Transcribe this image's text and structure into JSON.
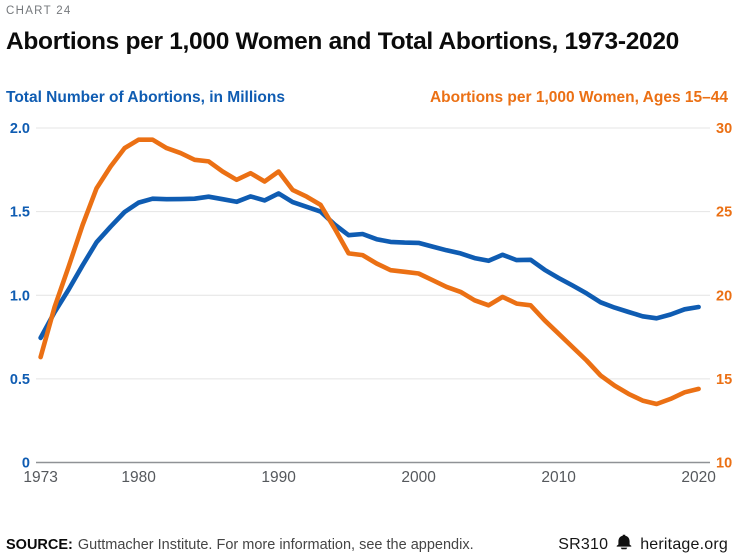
{
  "header": {
    "kicker": "CHART 24",
    "title": "Abortions per 1,000 Women and Total Abortions, 1973-2020"
  },
  "legend": {
    "left_label": "Total Number of Abortions, in Millions",
    "right_label": "Abortions per 1,000 Women, Ages 15–44"
  },
  "colors": {
    "blue": "#0F5CB2",
    "orange": "#EB7014",
    "grid": "#E4E4E4",
    "axis_line": "#8F9296",
    "year_tick": "#55585C",
    "kicker": "#76797D",
    "title": "#0B0B0B",
    "footer_text": "#454545"
  },
  "chart_data": {
    "type": "line",
    "title": "Abortions per 1,000 Women and Total Abortions, 1973-2020",
    "grid": true,
    "legend_position": "top",
    "x": [
      1973,
      1974,
      1975,
      1976,
      1977,
      1978,
      1979,
      1980,
      1981,
      1982,
      1983,
      1984,
      1985,
      1986,
      1987,
      1988,
      1989,
      1990,
      1991,
      1992,
      1993,
      1994,
      1995,
      1996,
      1997,
      1998,
      1999,
      2000,
      2001,
      2002,
      2003,
      2004,
      2005,
      2006,
      2007,
      2008,
      2009,
      2010,
      2011,
      2012,
      2013,
      2014,
      2015,
      2016,
      2017,
      2018,
      2019,
      2020
    ],
    "series": [
      {
        "id": "total-abortions",
        "name": "Total Number of Abortions, in Millions",
        "axis": "left",
        "color_key": "blue",
        "values": [
          0.745,
          0.899,
          1.034,
          1.179,
          1.317,
          1.41,
          1.498,
          1.554,
          1.577,
          1.574,
          1.575,
          1.577,
          1.589,
          1.574,
          1.559,
          1.591,
          1.567,
          1.609,
          1.557,
          1.529,
          1.5,
          1.423,
          1.359,
          1.366,
          1.335,
          1.319,
          1.315,
          1.313,
          1.291,
          1.269,
          1.25,
          1.222,
          1.206,
          1.242,
          1.21,
          1.212,
          1.152,
          1.103,
          1.058,
          1.011,
          0.958,
          0.926,
          0.9,
          0.874,
          0.862,
          0.885,
          0.916,
          0.93
        ]
      },
      {
        "id": "abortion-rate",
        "name": "Abortions per 1,000 Women, Ages 15–44",
        "axis": "right",
        "color_key": "orange",
        "values": [
          16.3,
          19.3,
          21.7,
          24.2,
          26.4,
          27.7,
          28.8,
          29.3,
          29.3,
          28.8,
          28.5,
          28.1,
          28.0,
          27.4,
          26.9,
          27.3,
          26.8,
          27.4,
          26.3,
          25.9,
          25.4,
          24.0,
          22.5,
          22.4,
          21.9,
          21.5,
          21.4,
          21.3,
          20.9,
          20.5,
          20.2,
          19.7,
          19.4,
          19.9,
          19.5,
          19.4,
          18.5,
          17.7,
          16.9,
          16.1,
          15.2,
          14.6,
          14.1,
          13.7,
          13.5,
          13.8,
          14.2,
          14.4
        ]
      }
    ],
    "left_axis": {
      "label": "Total Number of Abortions, in Millions",
      "min": 0,
      "max": 2.0,
      "ticks": [
        "2.0",
        "1.5",
        "1.0",
        "0.5",
        "0"
      ],
      "tick_values": [
        2.0,
        1.5,
        1.0,
        0.5,
        0
      ]
    },
    "right_axis": {
      "label": "Abortions per 1,000 Women, Ages 15–44",
      "min": 10,
      "max": 30,
      "ticks": [
        "30",
        "25",
        "20",
        "15",
        "10"
      ],
      "tick_values": [
        30,
        25,
        20,
        15,
        10
      ]
    },
    "x_axis": {
      "tick_years": [
        1973,
        1980,
        1990,
        2000,
        2010,
        2020
      ]
    }
  },
  "footer": {
    "source_label": "SOURCE:",
    "source_text": "Guttmacher Institute. For more information, see the appendix.",
    "report_code": "SR310",
    "brand": "heritage.org",
    "brand_icon": "liberty-bell-icon"
  }
}
